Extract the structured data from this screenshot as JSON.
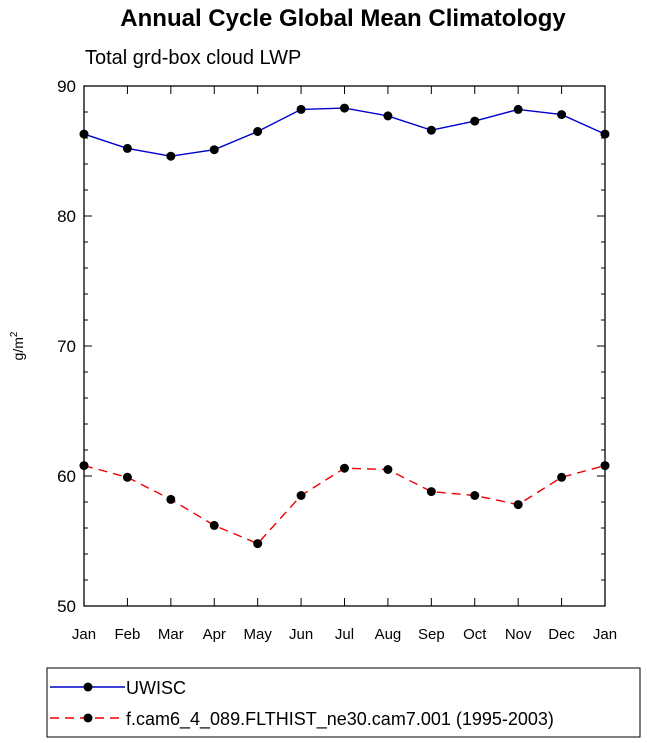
{
  "chart_data": {
    "type": "line",
    "title": "Annual Cycle Global Mean Climatology",
    "subtitle": "Total grd-box cloud LWP",
    "xlabel": "",
    "ylabel_base": "g/m",
    "ylabel_sup": "2",
    "ylim": [
      50,
      90
    ],
    "yticks": [
      50,
      60,
      70,
      80,
      90
    ],
    "ytick_labels": [
      "50",
      "60",
      "70",
      "80",
      "90"
    ],
    "categories": [
      "Jan",
      "Feb",
      "Mar",
      "Apr",
      "May",
      "Jun",
      "Jul",
      "Aug",
      "Sep",
      "Oct",
      "Nov",
      "Dec",
      "Jan"
    ],
    "series": [
      {
        "name": "UWISC",
        "color": "#0000cc",
        "dash": "solid",
        "values": [
          86.3,
          85.2,
          84.6,
          85.1,
          86.5,
          88.2,
          88.3,
          87.7,
          86.6,
          87.3,
          88.2,
          87.8,
          86.3
        ]
      },
      {
        "name": "f.cam6_4_089.FLTHIST_ne30.cam7.001 (1995-2003)",
        "color": "#ee0000",
        "dash": "dashed",
        "values": [
          60.8,
          59.9,
          58.2,
          56.2,
          54.8,
          58.5,
          60.6,
          60.5,
          58.8,
          58.5,
          57.8,
          59.9,
          60.8
        ]
      }
    ],
    "grid": false,
    "legend_position": "bottom"
  }
}
